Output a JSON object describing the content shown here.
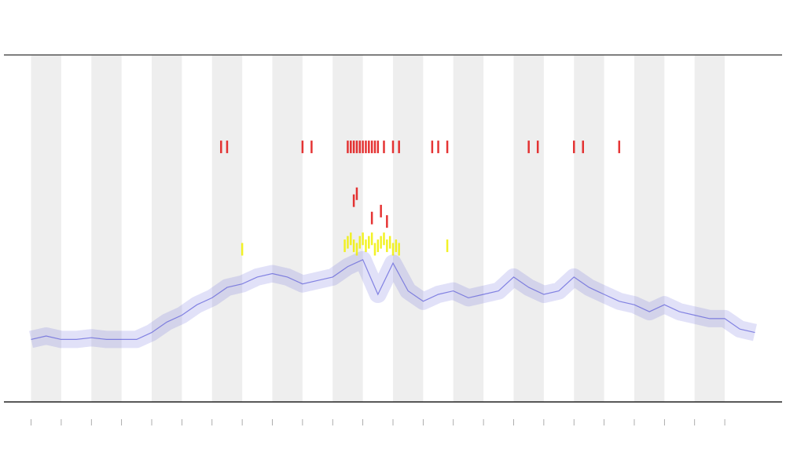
{
  "chart_data": {
    "type": "line",
    "xlim": [
      -0.9,
      24.9
    ],
    "ylim": [
      0,
      100
    ],
    "xticks": [
      0,
      1,
      2,
      3,
      4,
      5,
      6,
      7,
      8,
      9,
      10,
      11,
      12,
      13,
      14,
      15,
      16,
      17,
      18,
      19,
      20,
      21,
      22,
      23
    ],
    "band_color": "#eeeeee",
    "series": [
      {
        "color": "#5a5ad8",
        "style": "line",
        "x": [
          0,
          0.5,
          1,
          1.5,
          2,
          2.5,
          3,
          3.5,
          4,
          4.5,
          5,
          5.5,
          6,
          6.5,
          7,
          7.5,
          8,
          8.5,
          9,
          9.5,
          10,
          10.5,
          11,
          11.5,
          12,
          12.5,
          13,
          13.5,
          14,
          14.5,
          15,
          15.5,
          16,
          16.5,
          17,
          17.5,
          18,
          18.5,
          19,
          19.5,
          20,
          20.5,
          21,
          21.5,
          22,
          22.5,
          23,
          23.5,
          24
        ],
        "values": [
          18,
          19,
          18,
          18,
          18.5,
          18,
          18,
          18,
          20,
          23,
          25,
          28,
          30,
          33,
          34,
          36,
          37,
          36,
          34,
          35,
          36,
          39,
          41,
          31,
          40,
          32,
          29,
          31,
          32,
          30,
          31,
          32,
          36,
          33,
          31,
          32,
          36,
          33,
          31,
          29,
          28,
          26,
          28,
          26,
          25,
          24,
          24,
          21,
          20
        ]
      },
      {
        "color": "#f0f000",
        "style": "tick",
        "x": [
          10.4,
          10.5,
          10.6,
          10.7,
          10.8,
          10.9,
          11,
          11.1,
          11.2,
          11.3,
          11.4,
          11.5,
          11.6,
          11.7,
          11.8,
          11.9,
          12,
          12.1,
          12.2,
          7,
          13.8
        ],
        "values": [
          45,
          46,
          47,
          45,
          44,
          46,
          47,
          45,
          46,
          47,
          44,
          45,
          46,
          47,
          45,
          46,
          44,
          45,
          44,
          44,
          45
        ]
      },
      {
        "color": "#e01010",
        "style": "tick",
        "x": [
          6.3,
          6.5,
          9,
          9.3,
          10.5,
          10.6,
          10.7,
          10.8,
          10.9,
          11,
          11.1,
          11.2,
          11.3,
          11.4,
          11.5,
          11.7,
          12,
          12.2,
          13.3,
          13.5,
          13.8,
          16.5,
          16.8,
          18,
          18.3,
          19.5,
          10.7,
          10.8,
          11.3,
          11.6,
          11.8
        ],
        "values": [
          73.5,
          73.5,
          73.5,
          73.5,
          73.5,
          73.5,
          73.5,
          73.5,
          73.5,
          73.5,
          73.5,
          73.5,
          73.5,
          73.5,
          73.5,
          73.5,
          73.5,
          73.5,
          73.5,
          73.5,
          73.5,
          73.5,
          73.5,
          73.5,
          73.5,
          73.5,
          58,
          60,
          53,
          55,
          52
        ]
      }
    ]
  }
}
